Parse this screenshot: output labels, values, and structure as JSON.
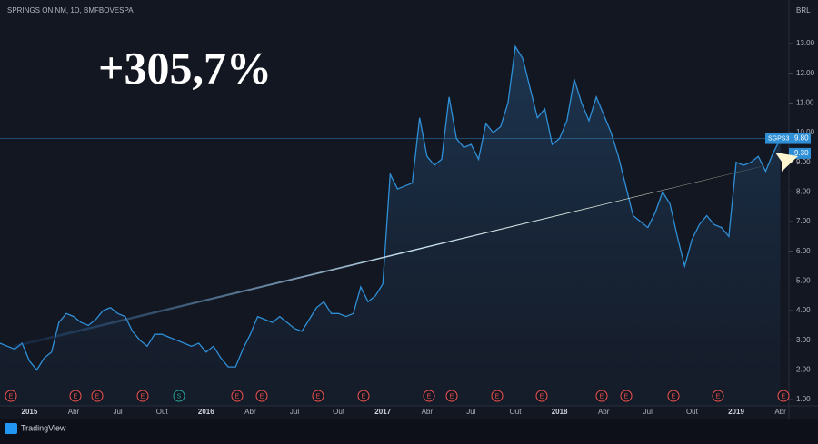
{
  "chart_data": {
    "type": "line",
    "title": "SPRINGS ON NM, 1D, BMFBOVESPA",
    "currency": "BRL",
    "annotation": "+305,7%",
    "brand": "TradingView",
    "categories": [
      null,
      null,
      null,
      null,
      "2015",
      null,
      null,
      null,
      null,
      null,
      "Abr",
      null,
      null,
      null,
      null,
      null,
      "Jul",
      null,
      null,
      null,
      null,
      null,
      "Out",
      null,
      null,
      null,
      null,
      null,
      "2016",
      null,
      null,
      null,
      null,
      null,
      "Abr",
      null,
      null,
      null,
      null,
      null,
      "Jul",
      null,
      null,
      null,
      null,
      null,
      "Out",
      null,
      null,
      null,
      null,
      null,
      "2017",
      null,
      null,
      null,
      null,
      null,
      "Abr",
      null,
      null,
      null,
      null,
      null,
      "Jul",
      null,
      null,
      null,
      null,
      null,
      "Out",
      null,
      null,
      null,
      null,
      null,
      "2018",
      null,
      null,
      null,
      null,
      null,
      "Abr",
      null,
      null,
      null,
      null,
      null,
      "Jul",
      null,
      null,
      null,
      null,
      null,
      "Out",
      null,
      null,
      null,
      null,
      null,
      "2019",
      null,
      null,
      null,
      null,
      null,
      "Abr"
    ],
    "series": [
      {
        "name": "SGPS3",
        "color": "#2f8fd6",
        "values": [
          2.9,
          2.8,
          2.7,
          2.9,
          2.3,
          2.0,
          2.4,
          2.6,
          3.6,
          3.9,
          3.8,
          3.6,
          3.5,
          3.7,
          4.0,
          4.1,
          3.9,
          3.8,
          3.3,
          3.0,
          2.8,
          3.2,
          3.2,
          3.1,
          3.0,
          2.9,
          2.8,
          2.9,
          2.6,
          2.8,
          2.4,
          2.1,
          2.1,
          2.7,
          3.2,
          3.8,
          3.7,
          3.6,
          3.8,
          3.6,
          3.4,
          3.3,
          3.7,
          4.1,
          4.3,
          3.9,
          3.9,
          3.8,
          3.9,
          4.8,
          4.3,
          4.5,
          4.9,
          8.6,
          8.1,
          8.2,
          8.3,
          10.5,
          9.2,
          8.9,
          9.1,
          11.2,
          9.8,
          9.5,
          9.6,
          9.1,
          10.3,
          10.0,
          10.2,
          11.0,
          12.9,
          12.5,
          11.5,
          10.5,
          10.8,
          9.6,
          9.8,
          10.4,
          11.8,
          11.0,
          10.4,
          11.2,
          10.6,
          10.0,
          9.2,
          8.2,
          7.2,
          7.0,
          6.8,
          7.3,
          8.0,
          7.6,
          6.5,
          5.5,
          6.4,
          6.9,
          7.2,
          6.9,
          6.8,
          6.5,
          9.0,
          8.9,
          9.0,
          9.2,
          8.7,
          9.3,
          9.8
        ]
      }
    ],
    "price_labels": [
      {
        "value": 9.8,
        "label": "9.80"
      },
      {
        "value": 9.3,
        "label": "9.30"
      }
    ],
    "events": [
      "E",
      "E",
      "E",
      "E",
      "S",
      "E",
      "E",
      "E",
      "E",
      "E",
      "E",
      "E",
      "E",
      "E",
      "E",
      "E",
      "E",
      "E"
    ],
    "ylim": [
      0.39,
      14.47
    ],
    "yticks": [
      {
        "value": 1,
        "label": "1.00"
      },
      {
        "value": 2,
        "label": "2.00"
      },
      {
        "value": 3,
        "label": "3.00"
      },
      {
        "value": 4,
        "label": "4.00"
      },
      {
        "value": 5,
        "label": "5.00"
      },
      {
        "value": 6,
        "label": "6.00"
      },
      {
        "value": 7,
        "label": "7.00"
      },
      {
        "value": 8,
        "label": "8.00"
      },
      {
        "value": 9,
        "label": "9.00"
      },
      {
        "value": 10,
        "label": "10.00"
      },
      {
        "value": 11,
        "label": "11.00"
      },
      {
        "value": 12,
        "label": "12.00"
      },
      {
        "value": 13,
        "label": "13.00"
      }
    ]
  }
}
